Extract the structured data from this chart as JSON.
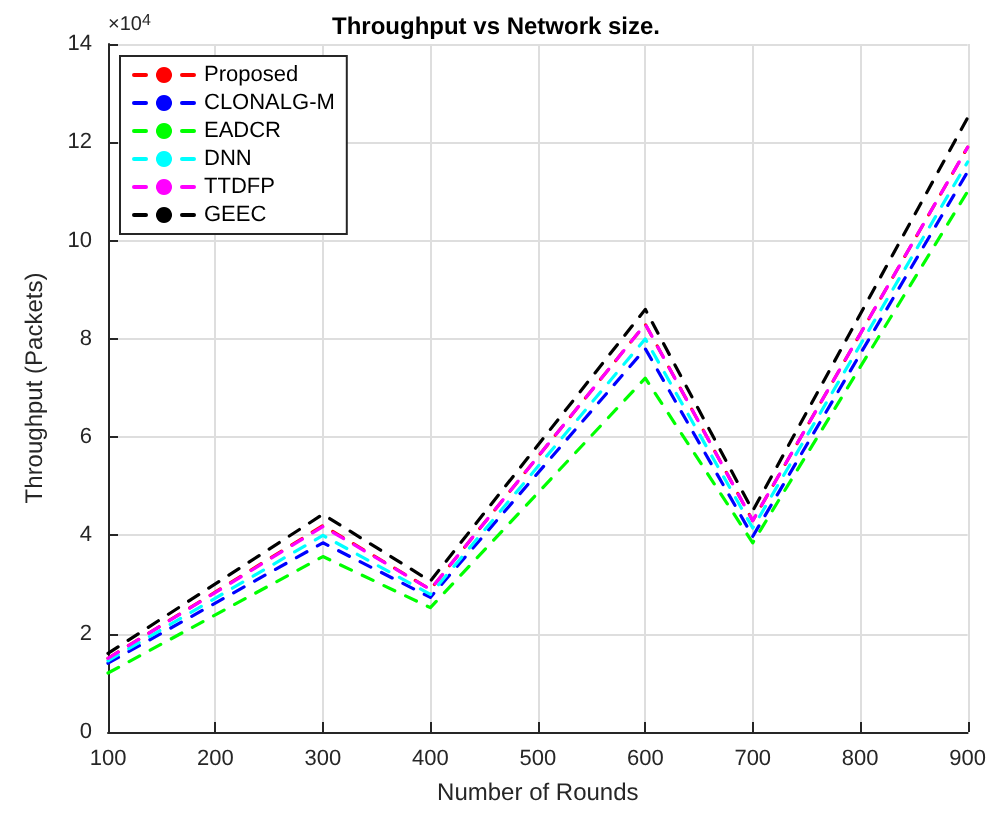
{
  "chart_data": {
    "type": "line",
    "title": "Throughput vs Network size.",
    "xlabel": "Number of Rounds",
    "ylabel": "Throughput (Packets)",
    "annotations": [
      "×10$^{4}$"
    ],
    "x": [
      100,
      300,
      400,
      600,
      700,
      900
    ],
    "series": [
      {
        "name": "Proposed",
        "color": "#ff0000",
        "values": [
          1.5,
          4.2,
          2.9,
          8.3,
          4.3,
          11.9
        ]
      },
      {
        "name": "CLONALG-M",
        "color": "#0000ff",
        "values": [
          1.4,
          3.85,
          2.74,
          7.8,
          3.98,
          11.4
        ]
      },
      {
        "name": "EADCR",
        "color": "#00ff00",
        "values": [
          1.2,
          3.57,
          2.53,
          7.2,
          3.85,
          11.0
        ]
      },
      {
        "name": "DNN",
        "color": "#00ffff",
        "values": [
          1.45,
          4.0,
          2.8,
          8.0,
          4.15,
          11.6
        ]
      },
      {
        "name": "TTDFP",
        "color": "#ff00ff",
        "values": [
          1.5,
          4.18,
          2.9,
          8.3,
          4.3,
          11.9
        ]
      },
      {
        "name": "GEEC",
        "color": "#000000",
        "values": [
          1.6,
          4.43,
          3.07,
          8.6,
          4.5,
          12.5
        ]
      }
    ],
    "xlim": [
      100,
      900
    ],
    "xticks": [
      100,
      200,
      300,
      400,
      500,
      600,
      700,
      800,
      900
    ],
    "ylim": [
      0,
      14
    ],
    "yticks": [
      0,
      2,
      4,
      6,
      8,
      10,
      12,
      14
    ],
    "grid": true,
    "legend": "top left",
    "marker": "none",
    "line_style": "dashed"
  }
}
